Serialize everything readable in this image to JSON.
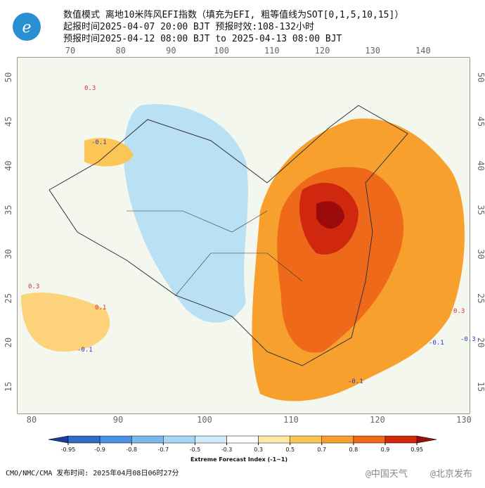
{
  "header": {
    "lines": [
      "数值模式 离地10米阵风EFI指数（填充为EFI, 粗等值线为SOT[0,1,5,10,15]）",
      "起报时间2025-04-07 20:00 BJT 预报时效:108-132小时",
      "预报时间2025-04-12 08:00 BJT to 2025-04-13 08:00 BJT"
    ]
  },
  "map": {
    "top_axis": [
      70,
      80,
      90,
      100,
      110,
      120,
      130,
      140
    ],
    "bottom_axis": [
      80,
      90,
      100,
      110,
      120,
      130
    ],
    "left_axis": [
      50,
      45,
      40,
      35,
      30,
      25,
      20,
      15
    ],
    "right_axis": [
      50,
      45,
      40,
      35,
      30,
      25,
      20,
      15
    ],
    "contour_labels": [
      "0.3",
      "-0.1",
      "0.3",
      "-0.1",
      "0.1",
      "-0.1",
      "0.3",
      "-0.1",
      "-0.3"
    ]
  },
  "colorbar": {
    "ticks": [
      -0.95,
      -0.9,
      -0.8,
      -0.7,
      -0.5,
      -0.3,
      0.3,
      0.5,
      0.7,
      0.8,
      0.9,
      0.95
    ],
    "colors": [
      "#1b3c9c",
      "#2d6cc8",
      "#4a92e0",
      "#79b7ec",
      "#a6d6f5",
      "#cfeaf8",
      "#ffffff",
      "#fde9a6",
      "#fcc657",
      "#f8a02e",
      "#ee6a1a",
      "#d0280f",
      "#9c0b0b"
    ],
    "label": "Extreme Forecast Index (-1~1)"
  },
  "footer": {
    "source": "CMO/NMC/CMA 发布时间: 2025年04月08日06时27分",
    "watermark_1": "@中国天气",
    "watermark_2": "@北京发布"
  }
}
